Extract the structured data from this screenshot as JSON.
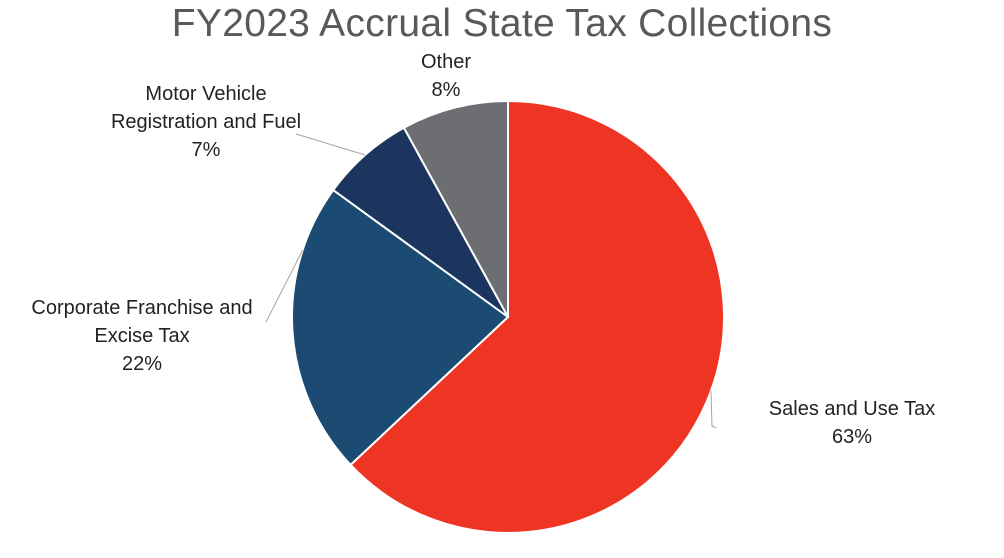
{
  "chart_data": {
    "type": "pie",
    "title": "FY2023 Accrual State Tax Collections",
    "slices": [
      {
        "label_lines": [
          "Sales and Use Tax"
        ],
        "value": 63,
        "display": "63%",
        "color": "#ee3524"
      },
      {
        "label_lines": [
          "Corporate Franchise and",
          "Excise Tax"
        ],
        "value": 22,
        "display": "22%",
        "color": "#1b4a72"
      },
      {
        "label_lines": [
          "Motor Vehicle",
          "Registration and Fuel"
        ],
        "value": 7,
        "display": "7%",
        "color": "#1c355e"
      },
      {
        "label_lines": [
          "Other"
        ],
        "value": 8,
        "display": "8%",
        "color": "#6d6e71"
      }
    ]
  }
}
